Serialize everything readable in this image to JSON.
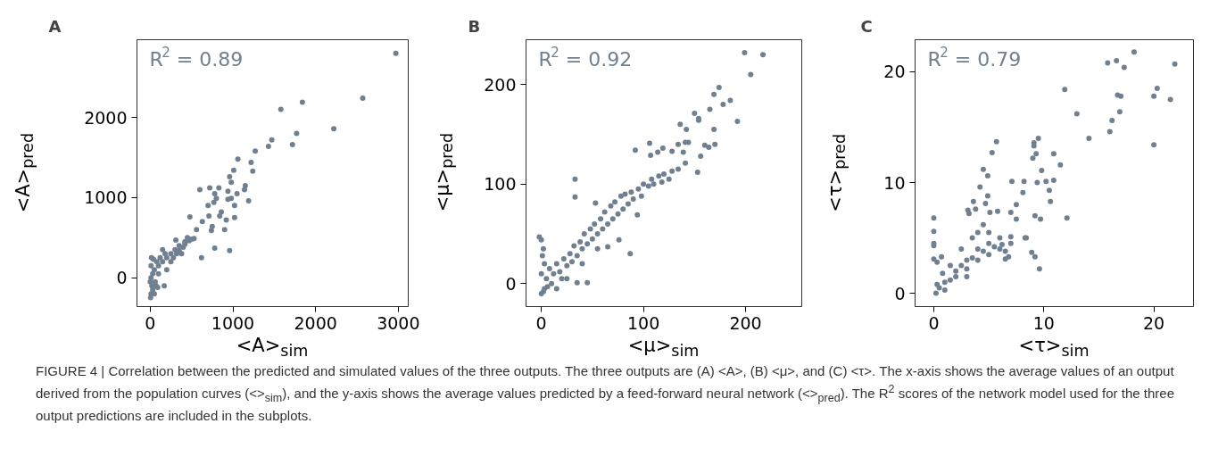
{
  "chart_data": [
    {
      "type": "scatter",
      "title": "A",
      "xlabel": "<A>$_{sim}$",
      "ylabel": "<A>$_{pred}$",
      "xlim": [
        -160,
        3120
      ],
      "ylim": [
        -360,
        2970
      ],
      "xticks": [
        0,
        1000,
        2000,
        3000
      ],
      "yticks": [
        0,
        1000,
        2000
      ],
      "grid": false,
      "marker": "circle",
      "annotations": [
        "R$^{2}$ = 0.89"
      ],
      "series": [
        {
          "color": "#708090",
          "x": [
            2970,
            2570,
            1840,
            1580,
            2220,
            1770,
            1720,
            1470,
            1430,
            1270,
            1060,
            1220,
            1240,
            1010,
            960,
            980,
            1150,
            1140,
            1050,
            1190,
            1020,
            830,
            720,
            600,
            940,
            940,
            980,
            780,
            800,
            770,
            700,
            860,
            840,
            1020,
            920,
            900,
            960,
            780,
            620,
            480,
            710,
            630,
            560,
            740,
            750,
            530,
            470,
            420,
            310,
            350,
            20,
            10,
            5,
            30,
            10,
            50,
            80,
            40,
            100,
            120,
            150,
            200,
            180,
            250,
            300,
            280,
            350,
            400,
            420,
            450,
            500,
            380,
            60,
            100,
            200,
            30,
            15,
            70,
            150,
            250,
            320,
            0,
            10,
            50,
            170,
            90
          ],
          "values": [
            2800,
            2240,
            2190,
            2100,
            1860,
            1800,
            1660,
            1720,
            1640,
            1580,
            1480,
            1440,
            1330,
            1340,
            1260,
            1190,
            1150,
            1100,
            1050,
            960,
            900,
            1120,
            1120,
            1100,
            1080,
            980,
            990,
            1050,
            990,
            940,
            900,
            820,
            770,
            750,
            720,
            600,
            340,
            370,
            250,
            760,
            770,
            700,
            600,
            590,
            640,
            490,
            460,
            420,
            470,
            340,
            -100,
            -200,
            -250,
            50,
            150,
            100,
            200,
            230,
            150,
            250,
            200,
            250,
            300,
            300,
            350,
            250,
            400,
            380,
            450,
            500,
            480,
            300,
            -50,
            50,
            100,
            -150,
            250,
            -100,
            350,
            200,
            300,
            -50,
            0,
            -200,
            -100,
            -120
          ]
        }
      ]
    },
    {
      "type": "scatter",
      "title": "B",
      "xlabel": "<μ>$_{sim}$",
      "ylabel": "<μ>$_{pred}$",
      "xlim": [
        -15,
        255
      ],
      "ylim": [
        -23,
        245
      ],
      "xticks": [
        0,
        100,
        200
      ],
      "yticks": [
        0,
        100,
        200
      ],
      "grid": false,
      "marker": "circle",
      "annotations": [
        "R$^{2}$ = 0.92"
      ],
      "series": [
        {
          "color": "#708090",
          "x": [
            199,
            217,
            205,
            174,
            169,
            178,
            185,
            192,
            165,
            150,
            154,
            154,
            136,
            142,
            169,
            134,
            141,
            144,
            160,
            164,
            170,
            139,
            141,
            156,
            153,
            134,
            92,
            106,
            107,
            114,
            119,
            128,
            33,
            33,
            -2,
            0,
            2,
            87,
            76,
            65,
            45,
            35,
            94,
            53,
            2,
            5,
            8,
            3,
            10,
            12,
            15,
            18,
            20,
            22,
            25,
            28,
            30,
            32,
            35,
            38,
            40,
            42,
            45,
            48,
            50,
            52,
            55,
            58,
            60,
            62,
            65,
            68,
            70,
            72,
            75,
            78,
            80,
            82,
            85,
            88,
            90,
            95,
            98,
            100,
            105,
            108,
            110,
            115,
            118,
            120,
            125,
            128,
            0,
            0,
            3,
            6,
            1,
            15,
            25,
            40,
            55
          ],
          "values": [
            232,
            230,
            210,
            197,
            190,
            180,
            184,
            163,
            175,
            171,
            166,
            164,
            160,
            155,
            155,
            140,
            142,
            142,
            139,
            137,
            140,
            132,
            121,
            128,
            112,
            115,
            134,
            141,
            129,
            132,
            136,
            133,
            105,
            87,
            47,
            44,
            35,
            30,
            44,
            37,
            1,
            1,
            69,
            81,
            -8,
            5,
            15,
            -5,
            0,
            10,
            20,
            12,
            5,
            25,
            18,
            30,
            22,
            38,
            28,
            42,
            35,
            50,
            40,
            55,
            45,
            60,
            50,
            65,
            55,
            72,
            60,
            78,
            65,
            82,
            70,
            88,
            75,
            90,
            80,
            92,
            85,
            95,
            88,
            100,
            98,
            105,
            100,
            108,
            102,
            110,
            105,
            113,
            10,
            -10,
            20,
            -3,
            28,
            -5,
            5,
            20,
            35
          ]
        }
      ]
    },
    {
      "type": "scatter",
      "title": "C",
      "xlabel": "<τ>$_{sim}$",
      "ylabel": "<τ>$_{pred}$",
      "xlim": [
        -1.7,
        23.6
      ],
      "ylim": [
        -1.2,
        22.9
      ],
      "xticks": [
        0,
        10,
        20
      ],
      "yticks": [
        0,
        10,
        20
      ],
      "grid": false,
      "marker": "circle",
      "annotations": [
        "R$^{2}$ = 0.79",
        "FIGURE 4 | Correlation between the predicted and simulated values of the three outputs. The three outputs are (A) <A>, (B) <μ>, and (C) <τ>. The x-axis shows the average values of an output derived from the population curves (<>$_{sim}$), and the y-axis shows the average values predicted by a feed-forward neural network (<>$_{pred}$). The R$^{2}$ scores of the network model used for the three output predictions are included in the subplots."
      ],
      "series": [
        {
          "color": "#708090",
          "x": [
            16.6,
            18.2,
            17.3,
            20.3,
            21.9,
            20.0,
            21.5,
            17.0,
            20.0,
            15.8,
            11.9,
            13.0,
            16.7,
            16.9,
            16.2,
            16.0,
            14.1,
            5.7,
            5.3,
            9.5,
            9.1,
            9.1,
            9.3,
            9.0,
            10.9,
            11.5,
            4.5,
            4.9,
            4.2,
            7.1,
            8.2,
            9.4,
            9.8,
            10.2,
            10.5,
            10.9,
            10.6,
            8.1,
            7.5,
            9.2,
            9.7,
            12.1,
            8.9,
            9.2,
            9.6,
            8.3,
            7.5,
            7.0,
            3.1,
            3.2,
            3.8,
            3.6,
            4.9,
            4.7,
            5.1,
            5.8,
            0,
            0,
            0,
            0,
            0,
            0.3,
            0.7,
            0.5,
            1,
            1.5,
            2,
            2.5,
            3,
            3.5,
            4,
            4.5,
            5,
            5.5,
            6,
            2,
            3,
            4,
            5,
            1,
            0.2,
            1.5,
            2.5,
            3.5,
            4,
            4.5,
            5,
            6,
            7,
            6.5,
            3,
            0.3,
            0.8,
            6.8,
            6.5,
            6.2,
            7.0,
            8.4
          ],
          "values": [
            21.0,
            21.8,
            20.4,
            18.5,
            20.7,
            17.8,
            17.5,
            17.8,
            13.4,
            20.8,
            18.4,
            16.2,
            17.9,
            16.4,
            15.6,
            14.6,
            14.0,
            13.7,
            12.7,
            14.0,
            13.6,
            13.3,
            12.6,
            12.2,
            12.6,
            11.6,
            11.2,
            10.6,
            9.6,
            10.1,
            10.1,
            10.0,
            11.1,
            10.1,
            9.3,
            10.2,
            8.3,
            9.1,
            8.0,
            7.0,
            6.7,
            6.8,
            3.7,
            3.3,
            2.2,
            5.0,
            6.7,
            7.3,
            7.5,
            7.2,
            7.6,
            8.3,
            8.8,
            8.1,
            7.3,
            7.4,
            6.8,
            5.6,
            4.3,
            4.5,
            3.1,
            2.8,
            3.3,
            0.5,
            1,
            1.2,
            2,
            2.5,
            3,
            3.2,
            4,
            3.8,
            4.5,
            4.2,
            5,
            1.5,
            2.2,
            3,
            3.5,
            0.3,
            0,
            2.5,
            4,
            5,
            5.5,
            6.2,
            5.5,
            4,
            4.5,
            3.8,
            1.5,
            0.8,
            1.8,
            3.3,
            3.1,
            4.4,
            5.1,
            5.0
          ]
        }
      ]
    }
  ]
}
